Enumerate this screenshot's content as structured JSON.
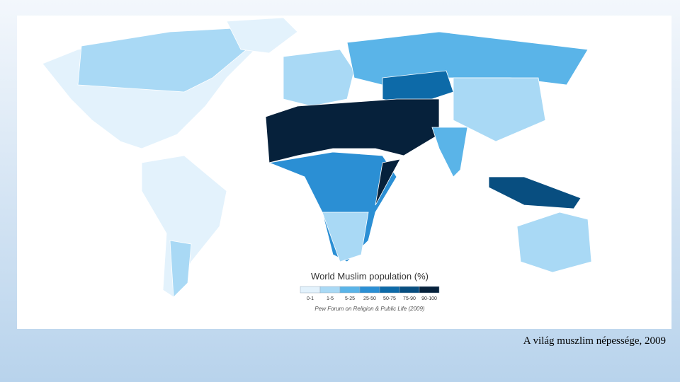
{
  "map": {
    "title": "World Muslim population (%)",
    "legend": [
      {
        "label": "0-1",
        "color": "#e3f2fc"
      },
      {
        "label": "1-5",
        "color": "#a9d9f5"
      },
      {
        "label": "5-25",
        "color": "#5ab4e8"
      },
      {
        "label": "25-50",
        "color": "#2b8fd4"
      },
      {
        "label": "50-75",
        "color": "#0d6aa8"
      },
      {
        "label": "75-90",
        "color": "#084e80"
      },
      {
        "label": "90-100",
        "color": "#06213b"
      }
    ],
    "source": "Pew Forum on Religion & Public Life (2009)"
  },
  "slide": {
    "caption": "A világ muszlim népessége, 2009"
  }
}
